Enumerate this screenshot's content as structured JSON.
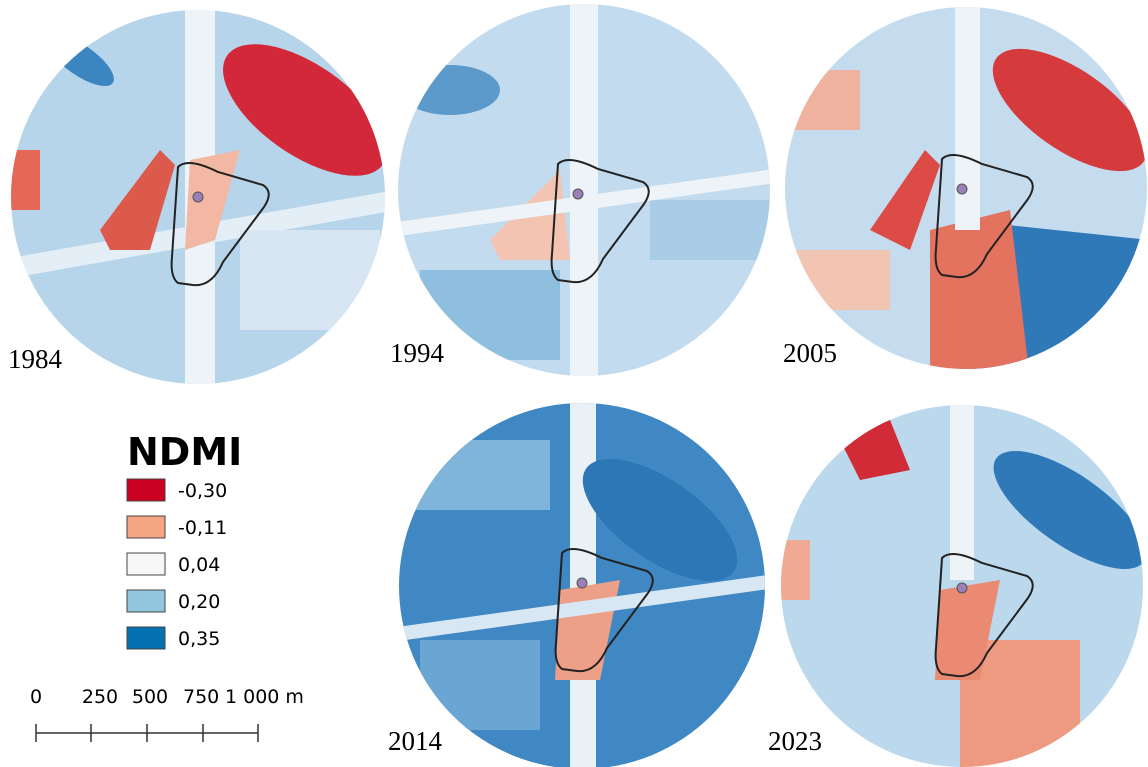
{
  "maps": [
    {
      "year": "1984"
    },
    {
      "year": "1994"
    },
    {
      "year": "2005"
    },
    {
      "year": "2014"
    },
    {
      "year": "2023"
    }
  ],
  "legend": {
    "title": "NDMI",
    "items": [
      {
        "label": "-0,30"
      },
      {
        "label": "-0,11"
      },
      {
        "label": "0,04"
      },
      {
        "label": "0,20"
      },
      {
        "label": "0,35"
      }
    ]
  },
  "scale_bar": {
    "labels": [
      "0",
      "250",
      "500",
      "750",
      "1 000 m"
    ]
  }
}
